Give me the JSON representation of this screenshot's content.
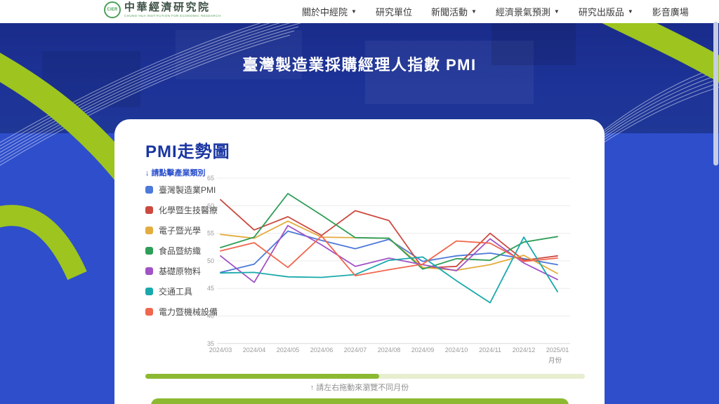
{
  "nav": {
    "logo": {
      "seal": "CIER",
      "title_zh": "中華經濟研究院",
      "title_en": "CHUNG-HUA INSTITUTION FOR ECONOMIC RESEARCH"
    },
    "items": [
      {
        "label": "關於中經院",
        "dropdown": true
      },
      {
        "label": "研究單位",
        "dropdown": false
      },
      {
        "label": "新聞活動",
        "dropdown": true
      },
      {
        "label": "經濟景氣預測",
        "dropdown": true
      },
      {
        "label": "研究出版品",
        "dropdown": true
      },
      {
        "label": "影音廣場",
        "dropdown": false
      }
    ]
  },
  "hero": {
    "title": "臺灣製造業採購經理人指數 PMI"
  },
  "card": {
    "section_title": "PMI走勢圖",
    "legend_hint": "↓ 請點擊產業類別",
    "drag_hint": "↑ 請左右拖動來瀏覽不同月份"
  },
  "colors": {
    "accent_green": "#9dc41f",
    "slider_fill": "#8cb931",
    "slider_track": "#e6eecf",
    "hero_blue": "#21399f",
    "body_blue": "#2e4ecb",
    "title_blue": "#1a36a2"
  },
  "chart_data": {
    "type": "line",
    "x": [
      "2024/03",
      "2024/04",
      "2024/05",
      "2024/06",
      "2024/07",
      "2024/08",
      "2024/09",
      "2024/10",
      "2024/11",
      "2024/12",
      "2025/01"
    ],
    "xlabel": "月份",
    "ylabel": "",
    "ylim": [
      35,
      65
    ],
    "yticks": [
      35,
      40,
      45,
      50,
      55,
      60,
      65
    ],
    "grid": true,
    "legend_position": "left",
    "series": [
      {
        "name": "臺灣製造業PMI",
        "color": "#4d79d9",
        "values": [
          47.9,
          49.4,
          55.4,
          53.7,
          52.2,
          53.9,
          49.9,
          50.9,
          51.4,
          50.4,
          49.3
        ]
      },
      {
        "name": "化學暨生技醫療",
        "color": "#cc4940",
        "values": [
          61.1,
          55.6,
          58.0,
          54.6,
          59.1,
          57.3,
          48.7,
          49.0,
          55.0,
          50.1,
          50.9
        ]
      },
      {
        "name": "電子暨光學",
        "color": "#e3ac3e",
        "values": [
          54.8,
          54.1,
          57.2,
          54.3,
          54.2,
          54.1,
          48.8,
          48.3,
          49.3,
          51.0,
          47.7
        ]
      },
      {
        "name": "食品暨紡織",
        "color": "#2f9e58",
        "values": [
          52.4,
          54.3,
          62.2,
          58.3,
          54.2,
          54.1,
          48.5,
          50.4,
          50.1,
          53.4,
          54.4
        ]
      },
      {
        "name": "基礎原物料",
        "color": "#a053c6",
        "values": [
          50.9,
          46.1,
          56.4,
          52.9,
          49.0,
          50.5,
          49.3,
          48.2,
          54.0,
          49.6,
          46.6
        ]
      },
      {
        "name": "交通工具",
        "color": "#19a9ac",
        "values": [
          47.8,
          47.9,
          47.1,
          47.0,
          47.5,
          50.1,
          50.7,
          46.4,
          42.4,
          54.3,
          44.4
        ]
      },
      {
        "name": "電力暨機械設備",
        "color": "#f1664e",
        "values": [
          51.8,
          53.3,
          48.8,
          54.5,
          47.3,
          48.4,
          49.4,
          53.6,
          53.2,
          49.9,
          50.5
        ]
      }
    ]
  }
}
